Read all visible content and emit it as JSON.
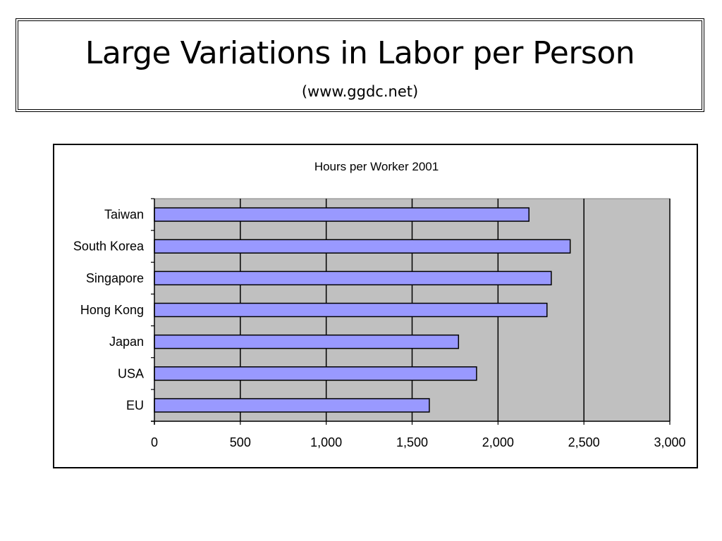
{
  "slide": {
    "title": "Large Variations in Labor per Person",
    "subtitle": "(www.ggdc.net)"
  },
  "chart_data": {
    "type": "bar",
    "orientation": "horizontal",
    "title": "Hours per Worker 2001",
    "xlabel": "",
    "ylabel": "",
    "categories": [
      "Taiwan",
      "South Korea",
      "Singapore",
      "Hong Kong",
      "Japan",
      "USA",
      "EU"
    ],
    "values": [
      2180,
      2420,
      2310,
      2285,
      1770,
      1875,
      1600
    ],
    "xlim": [
      0,
      3000
    ],
    "xticks": [
      0,
      500,
      1000,
      1500,
      2000,
      2500,
      3000
    ],
    "xtick_labels": [
      "0",
      "500",
      "1,000",
      "1,500",
      "2,000",
      "2,500",
      "3,000"
    ],
    "grid": "vertical",
    "legend": "none",
    "colors": {
      "bar_fill": "#9999ff",
      "bar_stroke": "#000000",
      "plot_background": "#c0c0c0",
      "gridline": "#000000"
    }
  }
}
